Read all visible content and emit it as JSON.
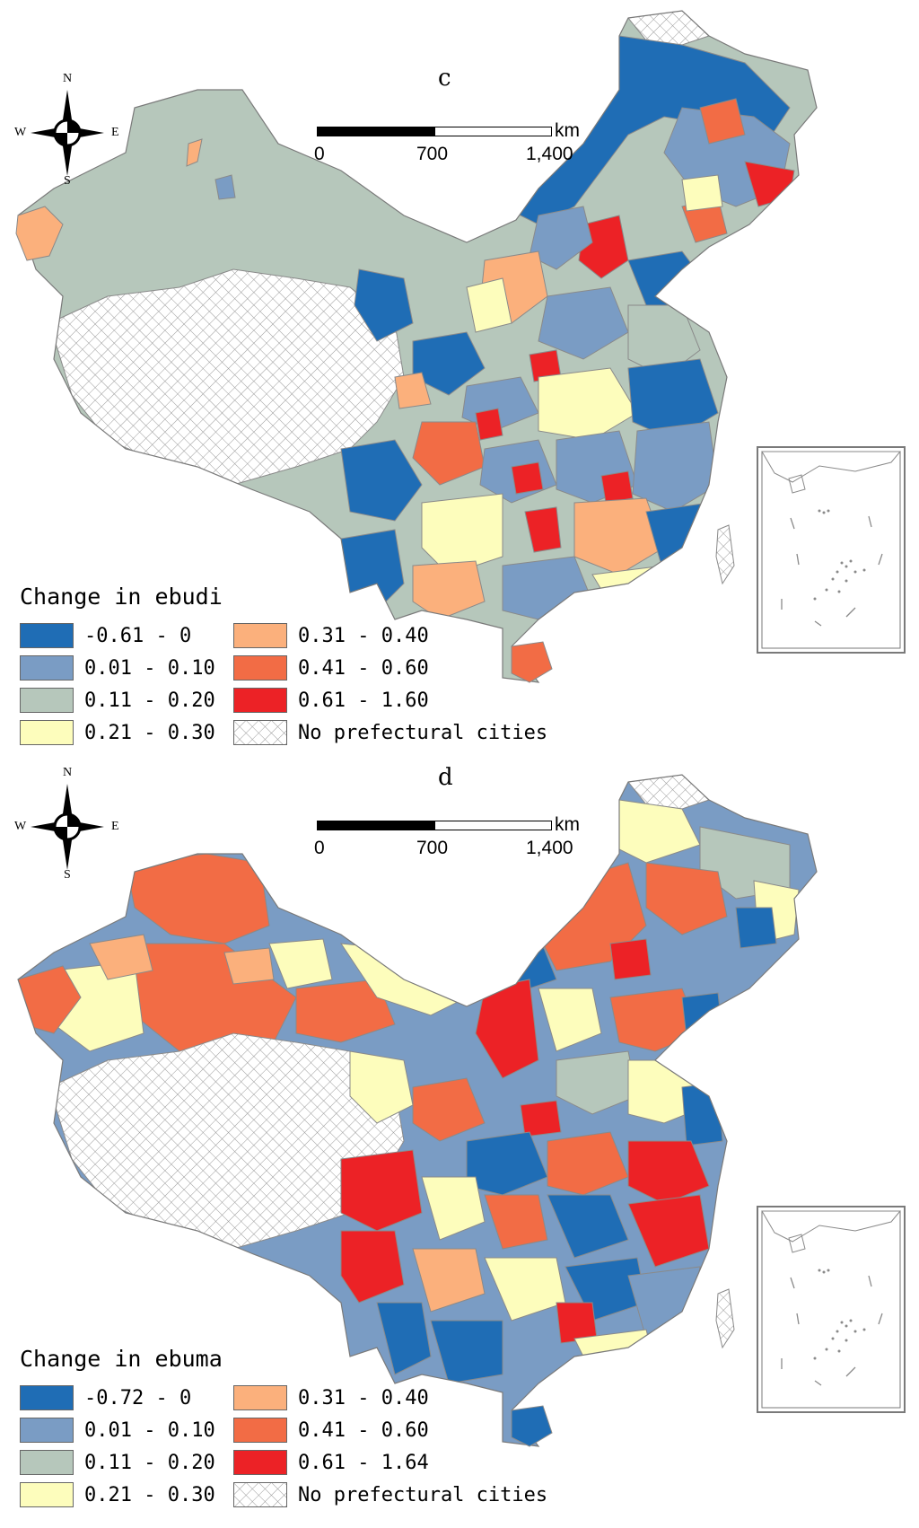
{
  "colors": {
    "class1": "#1f6db5",
    "class2": "#7a9cc4",
    "class3": "#b6c7bb",
    "class4": "#fdfdbc",
    "class5": "#fbb07c",
    "class6": "#f26c45",
    "class7": "#ec2226",
    "border": "#8a8a8a",
    "hatch": "#9a9a9a"
  },
  "compass": {
    "north": "N",
    "south": "S",
    "east": "E",
    "west": "W"
  },
  "scale": {
    "ticks": [
      "0",
      "700",
      "1,400"
    ],
    "unit": "km"
  },
  "panels": [
    {
      "label": "c",
      "legend": {
        "title": "Change in ebudi",
        "items": [
          {
            "label": "-0.61 - 0",
            "color": "#1f6db5",
            "pattern": "solid"
          },
          {
            "label": "0.01 - 0.10",
            "color": "#7a9cc4",
            "pattern": "solid"
          },
          {
            "label": "0.11 - 0.20",
            "color": "#b6c7bb",
            "pattern": "solid"
          },
          {
            "label": "0.21 - 0.30",
            "color": "#fdfdbc",
            "pattern": "solid"
          },
          {
            "label": "0.31 - 0.40",
            "color": "#fbb07c",
            "pattern": "solid"
          },
          {
            "label": "0.41 - 0.60",
            "color": "#f26c45",
            "pattern": "solid"
          },
          {
            "label": "0.61 - 1.60",
            "color": "#ec2226",
            "pattern": "solid"
          },
          {
            "label": "No prefectural cities",
            "color": "#ffffff",
            "pattern": "hatch"
          }
        ]
      }
    },
    {
      "label": "d",
      "legend": {
        "title": "Change in ebuma",
        "items": [
          {
            "label": "-0.72 - 0",
            "color": "#1f6db5",
            "pattern": "solid"
          },
          {
            "label": "0.01 - 0.10",
            "color": "#7a9cc4",
            "pattern": "solid"
          },
          {
            "label": "0.11 - 0.20",
            "color": "#b6c7bb",
            "pattern": "solid"
          },
          {
            "label": "0.21 - 0.30",
            "color": "#fdfdbc",
            "pattern": "solid"
          },
          {
            "label": "0.31 - 0.40",
            "color": "#fbb07c",
            "pattern": "solid"
          },
          {
            "label": "0.41 - 0.60",
            "color": "#f26c45",
            "pattern": "solid"
          },
          {
            "label": "0.61 - 1.64",
            "color": "#ec2226",
            "pattern": "solid"
          },
          {
            "label": "No prefectural cities",
            "color": "#ffffff",
            "pattern": "hatch"
          }
        ]
      }
    }
  ]
}
